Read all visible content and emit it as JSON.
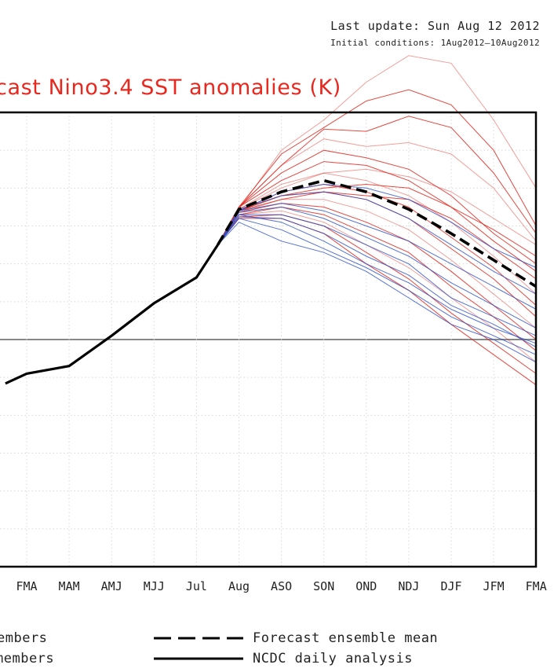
{
  "header": {
    "last_update": "Last update: Sun Aug 12 2012",
    "initial_conditions": "Initial conditions: 1Aug2012–10Aug2012"
  },
  "chart_data": {
    "type": "line",
    "title": "cast Nino3.4 SST anomalies (K)",
    "xlabel": "",
    "ylabel": "",
    "categories": [
      "FMA",
      "MAM",
      "AMJ",
      "MJJ",
      "Jul",
      "Aug",
      "ASO",
      "SON",
      "OND",
      "NDJ",
      "DJF",
      "JFM",
      "FMA"
    ],
    "x_start": -0.5,
    "x_end": 12,
    "ylim": [
      -3.0,
      3.0
    ],
    "grid": true,
    "zero_line": true,
    "colors": {
      "observed": "#000000",
      "mean": "#000000",
      "red_members": "#e0281e",
      "blue_members": "#2a50c8",
      "zero_line": "#888888"
    },
    "observed": {
      "name": "NCDC daily analysis",
      "x": [
        -0.5,
        0,
        1,
        2,
        3,
        4,
        4.5
      ],
      "y": [
        -0.58,
        -0.45,
        -0.35,
        0.05,
        0.48,
        0.82,
        1.25
      ]
    },
    "ensemble_mean": {
      "name": "Forecast ensemble mean",
      "x": [
        4.5,
        5,
        6,
        7,
        8,
        9,
        10,
        11,
        12
      ],
      "y": [
        1.25,
        1.72,
        1.95,
        2.1,
        1.95,
        1.72,
        1.4,
        1.05,
        0.7
      ]
    },
    "members_red": [
      [
        1.25,
        1.72,
        2.5,
        2.9,
        3.4,
        3.75,
        3.65,
        2.9,
        2.0
      ],
      [
        1.25,
        1.75,
        2.45,
        2.8,
        3.15,
        3.3,
        3.1,
        2.5,
        1.5
      ],
      [
        1.25,
        1.75,
        2.3,
        2.78,
        2.75,
        2.95,
        2.8,
        2.2,
        1.4
      ],
      [
        1.25,
        1.75,
        2.3,
        2.65,
        2.55,
        2.6,
        2.45,
        2.0,
        1.3
      ],
      [
        1.25,
        1.75,
        2.2,
        2.5,
        2.4,
        2.25,
        1.9,
        1.4,
        1.0
      ],
      [
        1.25,
        1.75,
        2.1,
        2.35,
        2.3,
        2.1,
        1.75,
        1.3,
        0.9
      ],
      [
        1.25,
        1.72,
        2.05,
        2.2,
        2.1,
        1.9,
        1.55,
        1.1,
        0.6
      ],
      [
        1.25,
        1.7,
        1.95,
        2.05,
        1.95,
        1.75,
        1.35,
        0.95,
        0.45
      ],
      [
        1.25,
        1.7,
        1.9,
        1.95,
        1.85,
        1.6,
        1.2,
        0.8,
        0.3
      ],
      [
        1.25,
        1.68,
        1.85,
        1.85,
        1.7,
        1.45,
        1.05,
        0.6,
        0.15
      ],
      [
        1.25,
        1.68,
        1.8,
        1.75,
        1.55,
        1.3,
        0.9,
        0.45,
        0.0
      ],
      [
        1.25,
        1.65,
        1.75,
        1.65,
        1.4,
        1.15,
        0.7,
        0.3,
        -0.15
      ],
      [
        1.25,
        1.65,
        1.7,
        1.55,
        1.25,
        0.95,
        0.55,
        0.15,
        -0.3
      ],
      [
        1.25,
        1.62,
        1.65,
        1.5,
        1.15,
        0.8,
        0.35,
        -0.05,
        -0.45
      ],
      [
        1.25,
        1.6,
        1.6,
        1.4,
        1.0,
        0.65,
        0.2,
        -0.2,
        -0.6
      ],
      [
        1.25,
        1.72,
        2.0,
        2.2,
        2.25,
        2.15,
        1.95,
        1.6,
        1.25
      ],
      [
        1.25,
        1.7,
        1.9,
        2.0,
        2.05,
        2.0,
        1.75,
        1.45,
        1.1
      ],
      [
        1.25,
        1.7,
        1.85,
        1.95,
        1.9,
        1.85,
        1.6,
        1.2,
        0.8
      ]
    ],
    "members_blue": [
      [
        1.25,
        1.65,
        1.55,
        1.3,
        1.0,
        0.75,
        0.4,
        0.15,
        -0.05
      ],
      [
        1.25,
        1.6,
        1.45,
        1.2,
        0.95,
        0.65,
        0.3,
        0.05,
        -0.2
      ],
      [
        1.25,
        1.55,
        1.3,
        1.15,
        0.9,
        0.55,
        0.2,
        0.0,
        -0.3
      ],
      [
        1.25,
        1.7,
        1.8,
        1.7,
        1.5,
        1.3,
        1.0,
        0.7,
        0.4
      ],
      [
        1.25,
        1.72,
        1.9,
        1.95,
        1.85,
        1.6,
        1.25,
        0.9,
        0.6
      ],
      [
        1.25,
        1.68,
        1.75,
        1.6,
        1.35,
        1.1,
        0.75,
        0.45,
        0.15
      ],
      [
        1.25,
        1.7,
        1.95,
        2.05,
        2.0,
        1.85,
        1.55,
        1.2,
        0.95
      ],
      [
        1.25,
        1.65,
        1.65,
        1.5,
        1.25,
        1.0,
        0.55,
        0.3,
        0.05
      ],
      [
        1.25,
        1.62,
        1.6,
        1.4,
        1.1,
        0.85,
        0.45,
        0.2,
        -0.1
      ]
    ]
  },
  "legend": {
    "red_label": "embers",
    "blue_label": "members",
    "mean_label": "Forecast ensemble mean",
    "analysis_label": "NCDC daily analysis"
  }
}
